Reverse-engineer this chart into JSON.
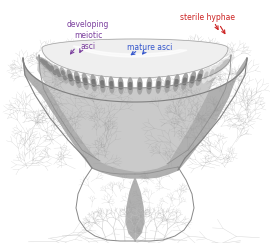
{
  "bg_color": "#ffffff",
  "label_dev": "developing\nmeiotic\nasci",
  "label_dev_color": "#7b3f9e",
  "label_mature": "mature asci",
  "label_mature_color": "#3355cc",
  "label_sterile": "sterile hyphae",
  "label_sterile_color": "#cc2222",
  "arrow_dev_color": "#7b3f9e",
  "arrow_mature_color": "#3355cc",
  "arrow_sterile_color": "#cc2222"
}
